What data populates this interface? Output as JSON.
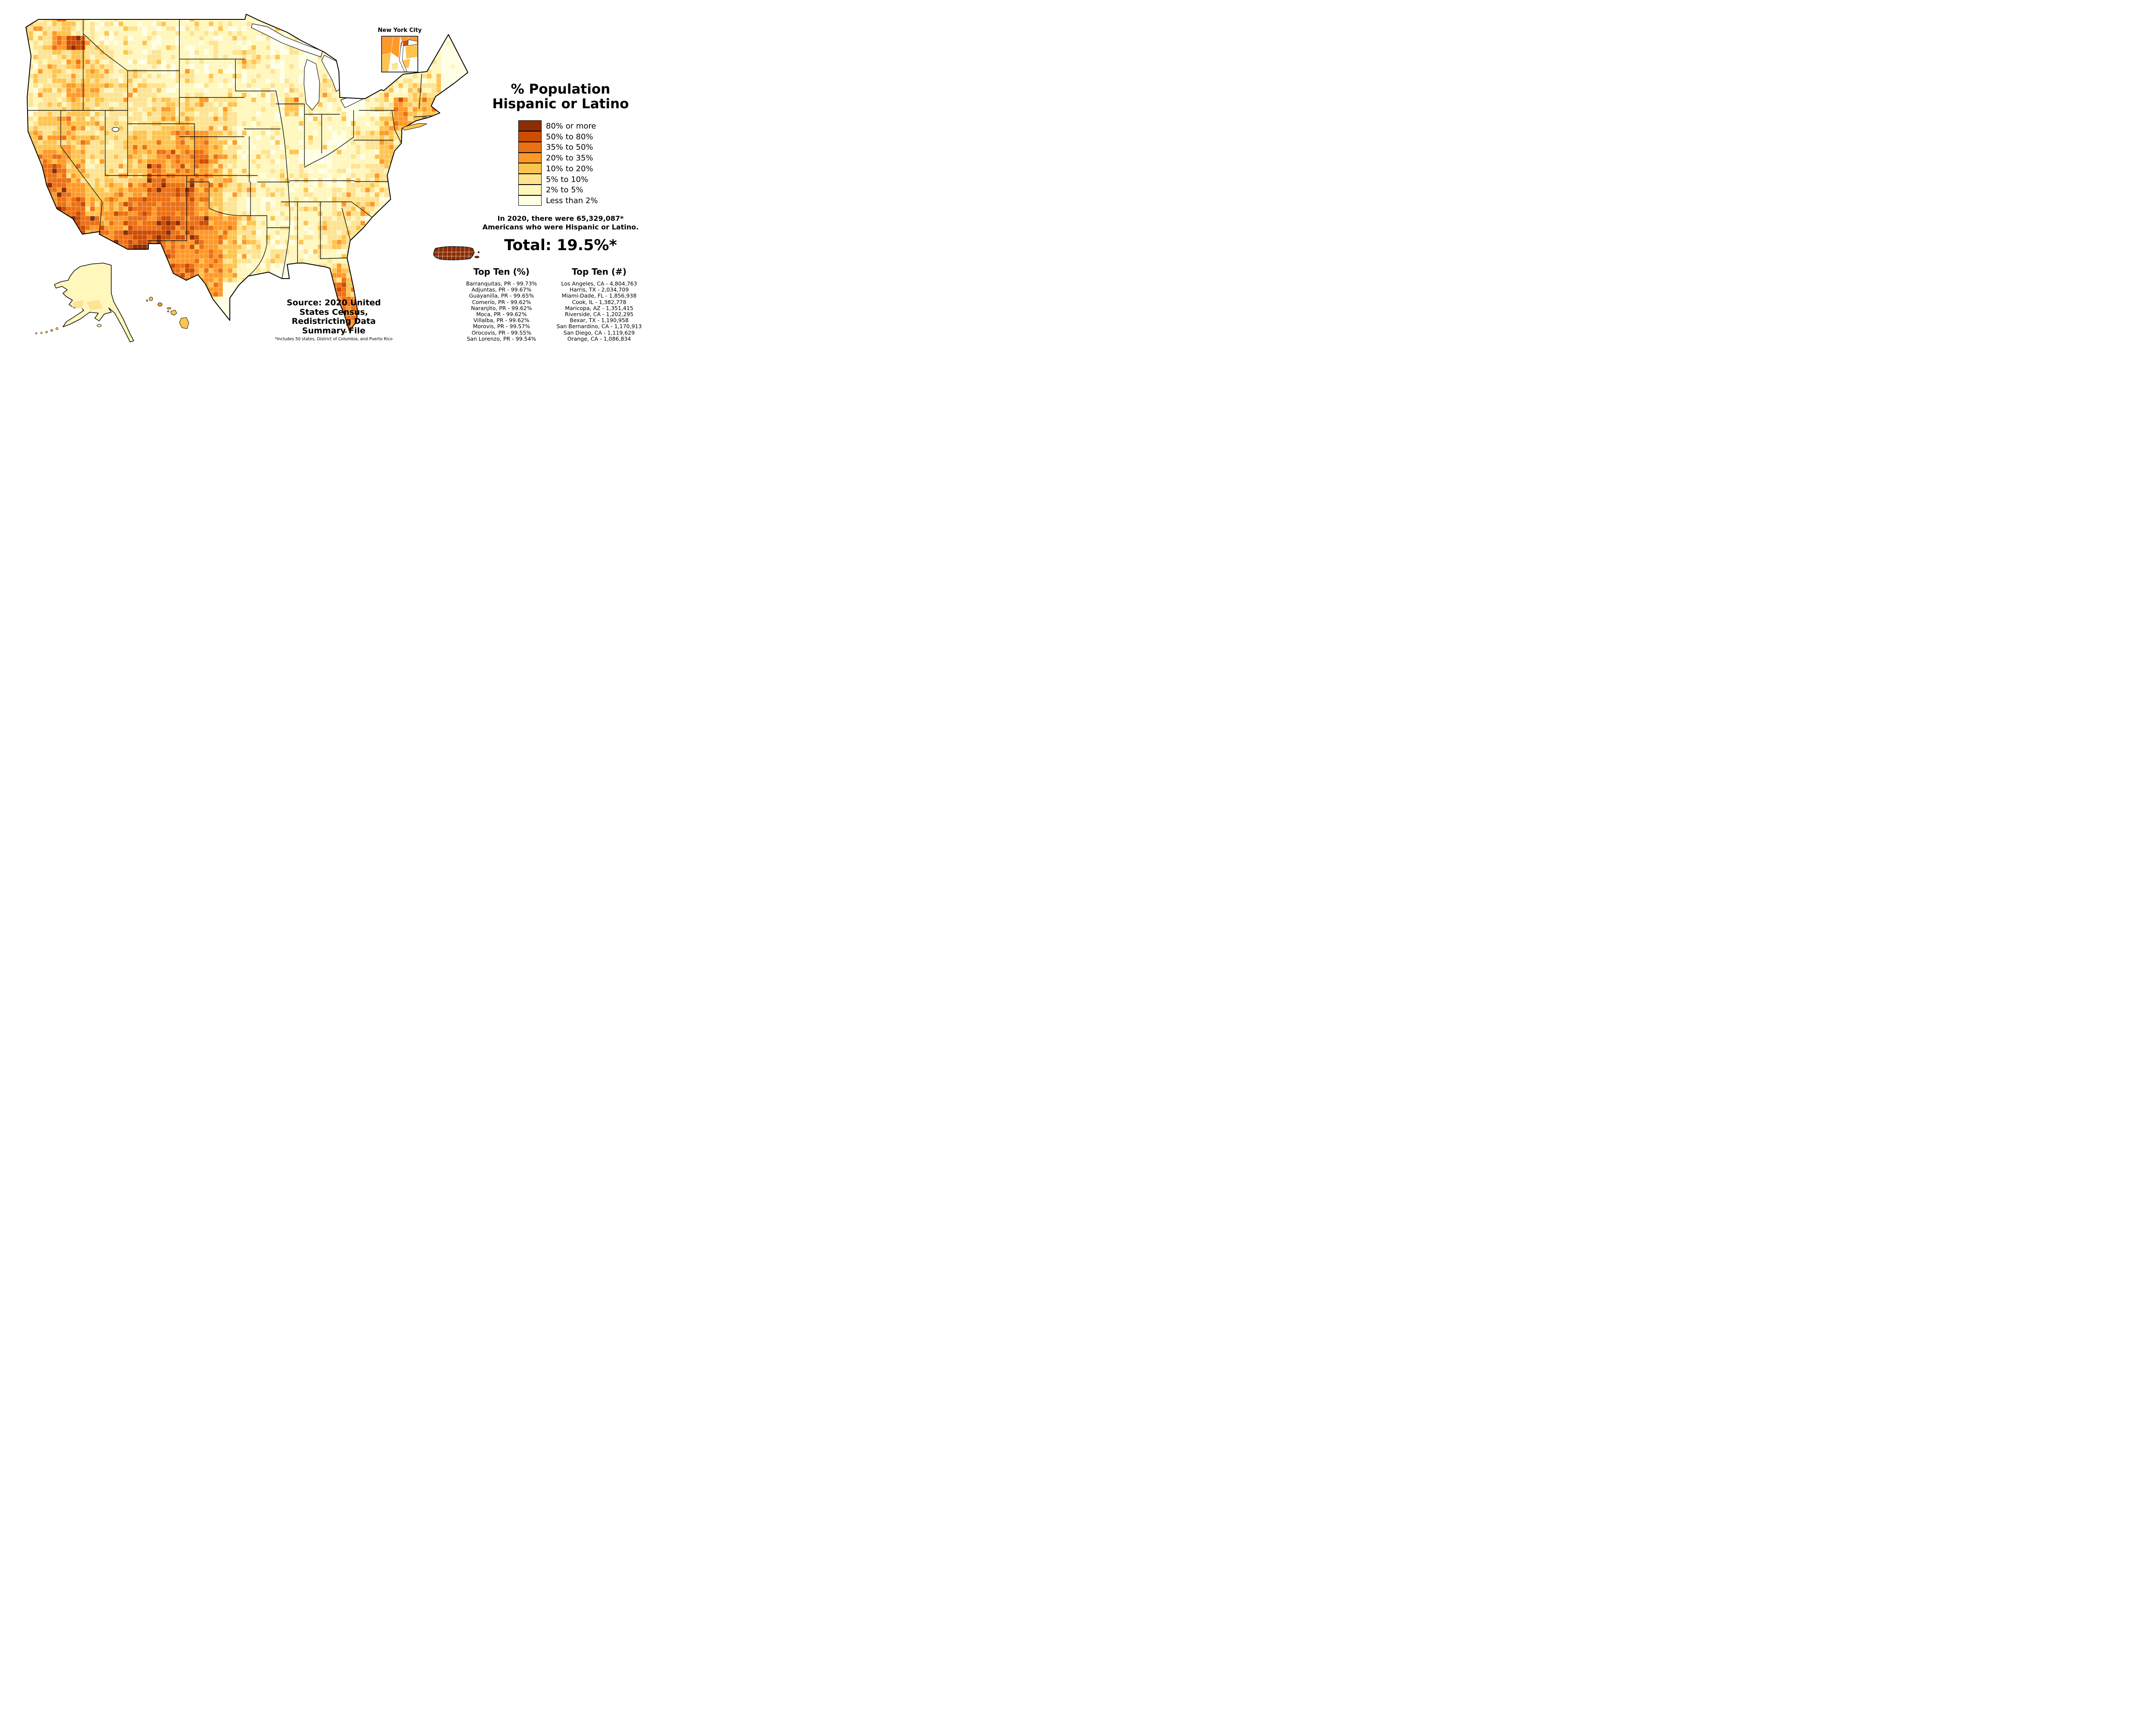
{
  "title": {
    "line1": "% Population",
    "line2": "Hispanic or Latino"
  },
  "legend": {
    "items": [
      {
        "label": "80% or more",
        "color": "#8c2d04"
      },
      {
        "label": "50% to 80%",
        "color": "#cc4c02"
      },
      {
        "label": "35% to 50%",
        "color": "#ec7014"
      },
      {
        "label": "20% to 35%",
        "color": "#fe9929"
      },
      {
        "label": "10% to 20%",
        "color": "#fec44f"
      },
      {
        "label": "5% to 10%",
        "color": "#fee391"
      },
      {
        "label": "2% to 5%",
        "color": "#fff7bc"
      },
      {
        "label": "Less than 2%",
        "color": "#ffffe5"
      }
    ]
  },
  "summary": {
    "line1": "In 2020, there were 65,329,087*",
    "line2": "Americans who were Hispanic or Latino.",
    "total": "Total: 19.5%*"
  },
  "top_ten_percent": {
    "heading": "Top Ten (%)",
    "items": [
      "Barranquitas, PR - 99.73%",
      "Adjuntas, PR - 99.67%",
      "Guayanilla, PR - 99.65%",
      "Comerío, PR - 99.62%",
      "Naranjito, PR - 99.62%",
      "Moca, PR - 99.62%",
      "Villalba, PR - 99.62%",
      "Morovis, PR - 99.57%",
      "Orocovis, PR - 99.55%",
      "San Lorenzo, PR - 99.54%"
    ]
  },
  "top_ten_count": {
    "heading": "Top Ten (#)",
    "items": [
      "Los Angeles, CA - 4,804,763",
      "Harris, TX - 2,034,709",
      "Miami-Dade, FL - 1,856,938",
      "Cook, IL - 1,382,778",
      "Maricopa, AZ - 1,351,415",
      "Riverside, CA - 1,202,295",
      "Bexar, TX - 1,190,958",
      "San Bernardino, CA - 1,170,913",
      "San Diego, CA - 1,119,629",
      "Orange, CA - 1,086,834"
    ]
  },
  "source": {
    "lines": [
      "Source: 2020 United",
      "States Census,",
      "Redistricting Data",
      "Summary File"
    ],
    "footnote": "*Includes 50 states, District of Columbia, and Puerto Rico"
  },
  "insets": {
    "nyc_label": "New York City"
  },
  "map": {
    "palette": [
      "#ffffe5",
      "#fff7bc",
      "#fee391",
      "#fec44f",
      "#fe9929",
      "#ec7014",
      "#cc4c02",
      "#8c2d04"
    ],
    "grid_cols": 28,
    "grid_rows": 18,
    "intensity_grid": [
      "2232111111111111100000011000",
      "2246211111111111010000011000",
      "1223221121111121110100011010",
      "1232321211211111111110111110",
      "1224322221111111111210121221",
      "1223222223222211131110124330",
      "2333222223322211111111134300",
      "3333222333443211111101232000",
      "3443222344453211110011132000",
      "5553222354443211111111220000",
      "4554333455543221111112210000",
      "4455344555543211111122200000",
      "0556544556554421111222100000",
      "0056445665544321111222000000",
      "0000000665444321211112000000",
      "0000000065544311000233000000",
      "0000000006554000000453000000",
      "0000000007760000000455000000"
    ]
  }
}
